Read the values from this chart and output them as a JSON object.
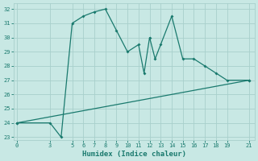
{
  "xlabel": "Humidex (Indice chaleur)",
  "line1_x": [
    0,
    3,
    4,
    5,
    6,
    7,
    8,
    9,
    10,
    11,
    11.5,
    12,
    12.5,
    13,
    14,
    15,
    16,
    17,
    18,
    19,
    21
  ],
  "line1_y": [
    24,
    24,
    23,
    31,
    31.5,
    31.8,
    32,
    30.5,
    29,
    29.5,
    27.5,
    30,
    28.5,
    29.5,
    31.5,
    28.5,
    28.5,
    28,
    27.5,
    27,
    27
  ],
  "line2_x": [
    0,
    21
  ],
  "line2_y": [
    24,
    27
  ],
  "color": "#1a7a6e",
  "bg_color": "#c8e8e4",
  "grid_color": "#a8d0cc",
  "ylim": [
    22.8,
    32.4
  ],
  "xlim": [
    -0.3,
    21.5
  ],
  "yticks": [
    23,
    24,
    25,
    26,
    27,
    28,
    29,
    30,
    31,
    32
  ],
  "xticks": [
    0,
    3,
    5,
    6,
    7,
    8,
    9,
    10,
    11,
    12,
    13,
    14,
    15,
    16,
    17,
    18,
    19,
    21
  ],
  "marker": "D",
  "markersize": 2.0,
  "linewidth": 0.9,
  "tick_fontsize": 5.0,
  "xlabel_fontsize": 6.5
}
